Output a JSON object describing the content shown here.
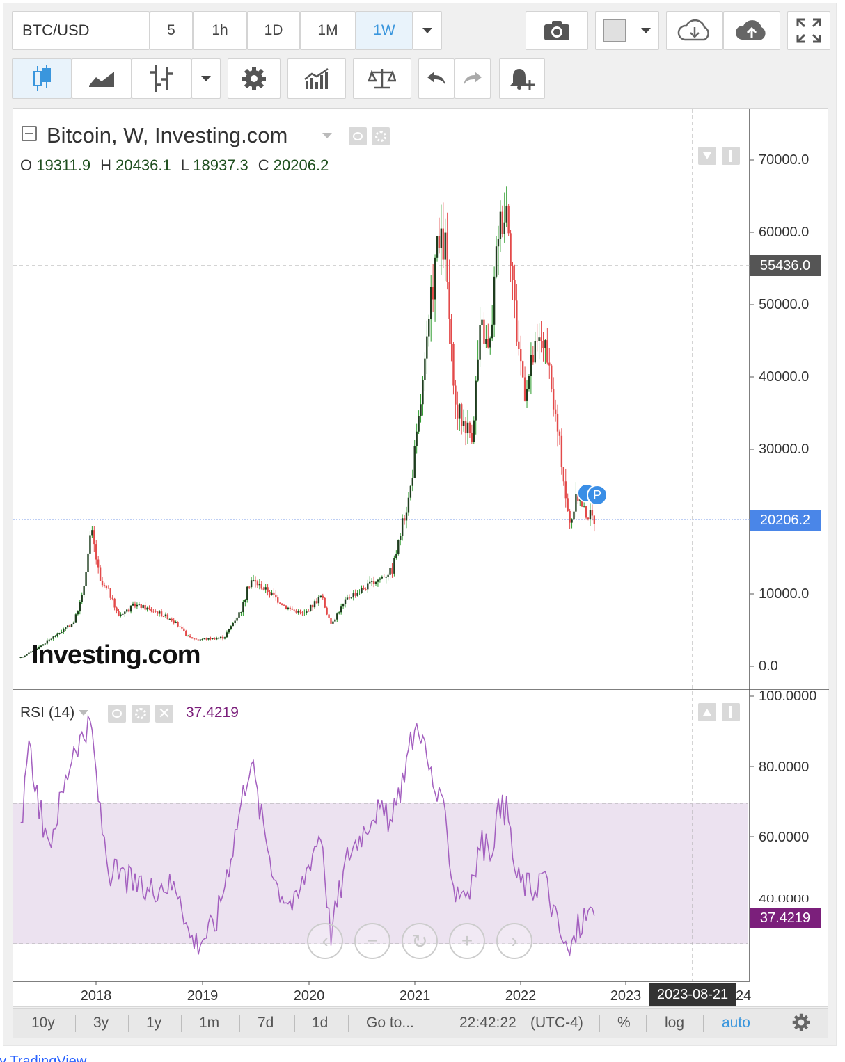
{
  "toolbar": {
    "symbol": "BTC/USD",
    "intervals": [
      "5",
      "1h",
      "1D",
      "1M",
      "1W"
    ],
    "active_interval": "1W"
  },
  "chart_header": {
    "title": "Bitcoin, W, Investing.com",
    "ohlc": [
      {
        "label": "O",
        "value": "19311.9"
      },
      {
        "label": "H",
        "value": "20436.1"
      },
      {
        "label": "L",
        "value": "18937.3"
      },
      {
        "label": "C",
        "value": "20206.2"
      }
    ]
  },
  "watermark": "Investing.com",
  "price_axis": {
    "ticks": [
      "70000.0",
      "60000.0",
      "50000.0",
      "40000.0",
      "30000.0",
      "10000.0",
      "0.0"
    ],
    "crosshair_label": "55436.0",
    "last_price_label": "20206.2"
  },
  "rsi": {
    "title": "RSI (14)",
    "value": "37.4219",
    "ticks": [
      "100.0000",
      "80.0000",
      "60.0000"
    ],
    "partial_tick": "40.0000",
    "last_label": "37.4219"
  },
  "time_axis": {
    "ticks": [
      "2018",
      "2019",
      "2020",
      "2021",
      "2022",
      "2023"
    ],
    "crosshair_label": "2023-08-21",
    "clipped_tick": "24"
  },
  "bottom_bar": {
    "ranges": [
      "10y",
      "3y",
      "1y",
      "1m",
      "7d",
      "1d"
    ],
    "goto": "Go to...",
    "clock": "22:42:22",
    "timezone": "(UTC-4)",
    "percent": "%",
    "log": "log",
    "auto": "auto"
  },
  "footer_credit": "by TradingView",
  "colors": {
    "up": "#2e9d2e",
    "down": "#e34a4a",
    "body": "#1e3d1e",
    "rsi_line": "#a35fbf",
    "rsi_band": "#ece2f0",
    "last_price_box": "#4a86e8",
    "rsi_box": "#7b1f7b",
    "active_interval": "#3a96dd"
  },
  "chart_data": [
    {
      "type": "candlestick",
      "title": "Bitcoin, W, Investing.com",
      "x_ticks": [
        "2018",
        "2019",
        "2020",
        "2021",
        "2022",
        "2023"
      ],
      "ylim": [
        0,
        70000
      ],
      "scale": "linear",
      "grid": false,
      "series": [
        {
          "name": "Bitcoin",
          "close_points": [
            {
              "x": "2017-04",
              "y": 1200
            },
            {
              "x": "2017-06",
              "y": 2600
            },
            {
              "x": "2017-08",
              "y": 4300
            },
            {
              "x": "2017-10",
              "y": 6100
            },
            {
              "x": "2017-11",
              "y": 9900
            },
            {
              "x": "2017-12",
              "y": 19000
            },
            {
              "x": "2018-01",
              "y": 11500
            },
            {
              "x": "2018-02",
              "y": 10300
            },
            {
              "x": "2018-03",
              "y": 7000
            },
            {
              "x": "2018-05",
              "y": 8500
            },
            {
              "x": "2018-07",
              "y": 7700
            },
            {
              "x": "2018-09",
              "y": 6600
            },
            {
              "x": "2018-11",
              "y": 4000
            },
            {
              "x": "2018-12",
              "y": 3700
            },
            {
              "x": "2019-03",
              "y": 4000
            },
            {
              "x": "2019-05",
              "y": 8000
            },
            {
              "x": "2019-06",
              "y": 12000
            },
            {
              "x": "2019-08",
              "y": 10400
            },
            {
              "x": "2019-10",
              "y": 8200
            },
            {
              "x": "2019-12",
              "y": 7200
            },
            {
              "x": "2020-02",
              "y": 9800
            },
            {
              "x": "2020-03",
              "y": 5800
            },
            {
              "x": "2020-05",
              "y": 9500
            },
            {
              "x": "2020-08",
              "y": 11700
            },
            {
              "x": "2020-10",
              "y": 13400
            },
            {
              "x": "2020-12",
              "y": 24000
            },
            {
              "x": "2021-01",
              "y": 34000
            },
            {
              "x": "2021-02",
              "y": 45000
            },
            {
              "x": "2021-03",
              "y": 58000
            },
            {
              "x": "2021-04",
              "y": 58000
            },
            {
              "x": "2021-05",
              "y": 36000
            },
            {
              "x": "2021-07",
              "y": 32000
            },
            {
              "x": "2021-08",
              "y": 47000
            },
            {
              "x": "2021-09",
              "y": 43000
            },
            {
              "x": "2021-10",
              "y": 61000
            },
            {
              "x": "2021-11",
              "y": 64000
            },
            {
              "x": "2021-12",
              "y": 47000
            },
            {
              "x": "2022-01",
              "y": 38000
            },
            {
              "x": "2022-02",
              "y": 43000
            },
            {
              "x": "2022-03",
              "y": 46000
            },
            {
              "x": "2022-05",
              "y": 30000
            },
            {
              "x": "2022-06",
              "y": 19500
            },
            {
              "x": "2022-07",
              "y": 23500
            },
            {
              "x": "2022-08",
              "y": 21000
            },
            {
              "x": "2022-09",
              "y": 20206.2
            }
          ],
          "last": {
            "open": 19311.9,
            "high": 20436.1,
            "low": 18937.3,
            "close": 20206.2
          }
        }
      ]
    },
    {
      "type": "line",
      "title": "RSI (14)",
      "ylim": [
        20,
        100
      ],
      "bands": [
        30,
        70
      ],
      "series": [
        {
          "name": "RSI (14)",
          "points": [
            {
              "x": "2017-04",
              "y": 63
            },
            {
              "x": "2017-05",
              "y": 85
            },
            {
              "x": "2017-07",
              "y": 56
            },
            {
              "x": "2017-09",
              "y": 75
            },
            {
              "x": "2017-10",
              "y": 86
            },
            {
              "x": "2017-12",
              "y": 91
            },
            {
              "x": "2018-01",
              "y": 66
            },
            {
              "x": "2018-02",
              "y": 50
            },
            {
              "x": "2018-04",
              "y": 48
            },
            {
              "x": "2018-06",
              "y": 44
            },
            {
              "x": "2018-08",
              "y": 47
            },
            {
              "x": "2018-10",
              "y": 45
            },
            {
              "x": "2018-11",
              "y": 32
            },
            {
              "x": "2018-12",
              "y": 30
            },
            {
              "x": "2019-02",
              "y": 35
            },
            {
              "x": "2019-04",
              "y": 58
            },
            {
              "x": "2019-06",
              "y": 83
            },
            {
              "x": "2019-07",
              "y": 68
            },
            {
              "x": "2019-09",
              "y": 46
            },
            {
              "x": "2019-11",
              "y": 40
            },
            {
              "x": "2020-01",
              "y": 56
            },
            {
              "x": "2020-02",
              "y": 62
            },
            {
              "x": "2020-03",
              "y": 32
            },
            {
              "x": "2020-05",
              "y": 55
            },
            {
              "x": "2020-07",
              "y": 63
            },
            {
              "x": "2020-08",
              "y": 68
            },
            {
              "x": "2020-10",
              "y": 64
            },
            {
              "x": "2020-12",
              "y": 86
            },
            {
              "x": "2021-01",
              "y": 93
            },
            {
              "x": "2021-02",
              "y": 81
            },
            {
              "x": "2021-03",
              "y": 72
            },
            {
              "x": "2021-04",
              "y": 65
            },
            {
              "x": "2021-05",
              "y": 45
            },
            {
              "x": "2021-07",
              "y": 45
            },
            {
              "x": "2021-08",
              "y": 59
            },
            {
              "x": "2021-09",
              "y": 55
            },
            {
              "x": "2021-10",
              "y": 67
            },
            {
              "x": "2021-11",
              "y": 68
            },
            {
              "x": "2021-12",
              "y": 48
            },
            {
              "x": "2022-02",
              "y": 45
            },
            {
              "x": "2022-03",
              "y": 50
            },
            {
              "x": "2022-05",
              "y": 32
            },
            {
              "x": "2022-06",
              "y": 26
            },
            {
              "x": "2022-07",
              "y": 34
            },
            {
              "x": "2022-08",
              "y": 38
            },
            {
              "x": "2022-09",
              "y": 37.42
            }
          ]
        }
      ]
    }
  ]
}
